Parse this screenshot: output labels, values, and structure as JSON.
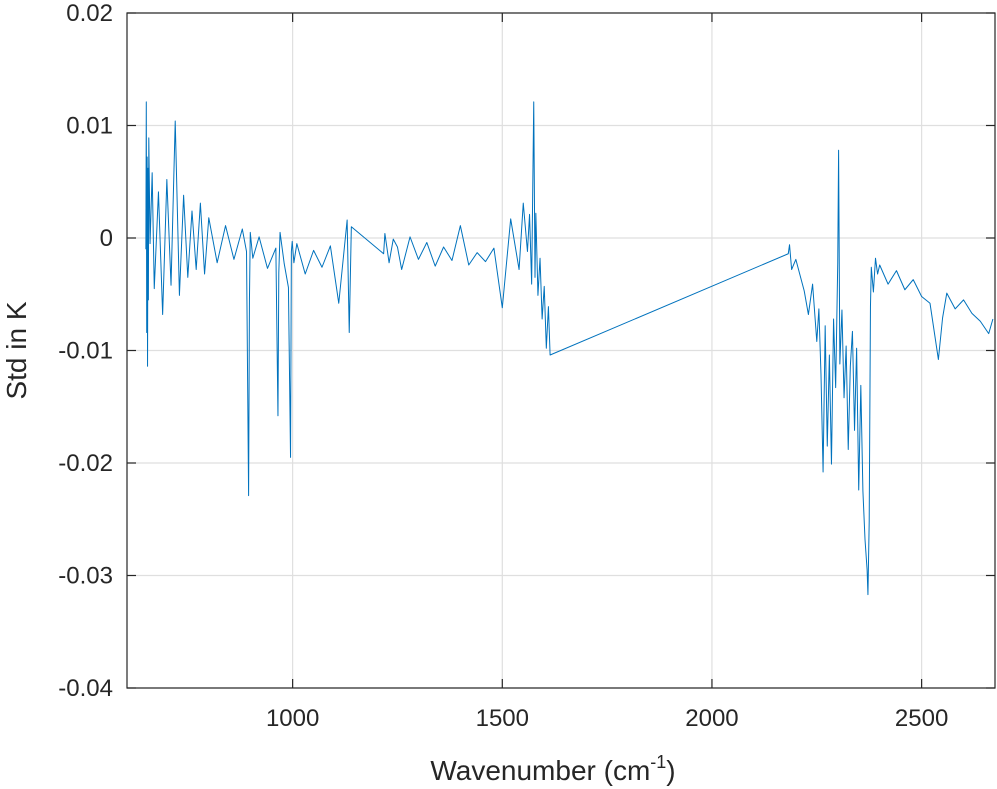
{
  "chart_data": {
    "type": "line",
    "xlabel_main": "Wavenumber (cm",
    "xlabel_sup": "-1",
    "xlabel_close": ")",
    "ylabel": "Std in K",
    "xlim": [
      605,
      2675
    ],
    "ylim": [
      -0.04,
      0.02
    ],
    "xticks": [
      1000,
      1500,
      2000,
      2500
    ],
    "xtick_labels": [
      "1000",
      "1500",
      "2000",
      "2500"
    ],
    "yticks": [
      0.02,
      0.01,
      0,
      -0.01,
      -0.02,
      -0.03,
      -0.04
    ],
    "ytick_labels": [
      "0.02",
      "0.01",
      "0",
      "-0.01",
      "-0.02",
      "-0.03",
      "-0.04"
    ],
    "grid": true,
    "box": true,
    "series_color": "#0072bd",
    "series": [
      {
        "x": [
          650,
          651,
          652,
          653,
          654,
          655,
          656,
          657,
          660,
          665,
          670,
          680,
          690,
          700,
          710,
          720,
          730,
          740,
          750,
          760,
          770,
          780,
          790,
          800,
          820,
          840,
          860,
          880,
          890,
          895,
          897,
          899,
          905,
          920,
          940,
          960,
          965,
          967,
          970,
          980,
          990,
          995,
          997,
          999,
          1003,
          1010,
          1030,
          1050,
          1070,
          1090,
          1110,
          1130,
          1135,
          1140,
          1217,
          1220,
          1230,
          1240,
          1250,
          1260,
          1280,
          1300,
          1320,
          1340,
          1360,
          1380,
          1400,
          1420,
          1440,
          1460,
          1480,
          1500,
          1520,
          1540,
          1550,
          1560,
          1565,
          1570,
          1575,
          1578,
          1580,
          1585,
          1590,
          1595,
          1600,
          1605,
          1610,
          1614,
          2182,
          2185,
          2190,
          2200,
          2210,
          2220,
          2230,
          2240,
          2250,
          2255,
          2260,
          2265,
          2270,
          2275,
          2280,
          2285,
          2290,
          2295,
          2300,
          2302,
          2305,
          2310,
          2315,
          2320,
          2325,
          2330,
          2335,
          2340,
          2345,
          2350,
          2355,
          2360,
          2365,
          2370,
          2372,
          2375,
          2378,
          2380,
          2385,
          2390,
          2395,
          2400,
          2420,
          2440,
          2460,
          2480,
          2500,
          2520,
          2540,
          2550,
          2560,
          2580,
          2600,
          2620,
          2640,
          2660,
          2670
        ],
        "y": [
          -0.001,
          0.0121,
          -0.0084,
          0.0072,
          -0.0114,
          0.0062,
          -0.0055,
          0.0089,
          -0.0005,
          0.0058,
          -0.0045,
          0.0041,
          -0.0068,
          0.0052,
          -0.0042,
          0.0104,
          -0.0051,
          0.0038,
          -0.0035,
          0.0024,
          -0.0028,
          0.0031,
          -0.0032,
          0.0018,
          -0.0022,
          0.0011,
          -0.0019,
          0.0008,
          -0.0012,
          -0.0229,
          -0.0055,
          0.0005,
          -0.0018,
          0.0001,
          -0.0027,
          -0.0009,
          -0.0158,
          -0.0031,
          0.0005,
          -0.0023,
          -0.0044,
          -0.0195,
          -0.0012,
          -0.0003,
          -0.0022,
          -0.0005,
          -0.0032,
          -0.0011,
          -0.0026,
          -0.0007,
          -0.0058,
          0.0016,
          -0.0084,
          0.001,
          -0.0014,
          0.0004,
          -0.0022,
          -0.0001,
          -0.0008,
          -0.0028,
          0.0001,
          -0.0019,
          -0.0004,
          -0.0025,
          -0.0008,
          -0.002,
          0.0011,
          -0.0024,
          -0.0013,
          -0.0021,
          -0.0009,
          -0.0062,
          0.0017,
          -0.0028,
          0.0031,
          -0.0012,
          0.0021,
          -0.0041,
          0.0121,
          -0.0035,
          0.0022,
          -0.0051,
          -0.0018,
          -0.0072,
          -0.0043,
          -0.0098,
          -0.0061,
          -0.0104,
          -0.0014,
          -0.0006,
          -0.0028,
          -0.0019,
          -0.0033,
          -0.0047,
          -0.0068,
          -0.0041,
          -0.0092,
          -0.0063,
          -0.0121,
          -0.0208,
          -0.0078,
          -0.0185,
          -0.0104,
          -0.0201,
          -0.0072,
          -0.0133,
          -0.0022,
          0.0078,
          -0.0112,
          -0.0064,
          -0.0142,
          -0.0096,
          -0.0188,
          -0.0114,
          -0.0083,
          -0.0171,
          -0.0098,
          -0.0224,
          -0.0131,
          -0.0225,
          -0.0268,
          -0.0295,
          -0.0317,
          -0.0252,
          -0.0061,
          -0.0026,
          -0.0048,
          -0.0018,
          -0.0032,
          -0.0024,
          -0.0041,
          -0.0029,
          -0.0046,
          -0.0037,
          -0.0052,
          -0.0058,
          -0.0108,
          -0.0071,
          -0.0049,
          -0.0063,
          -0.0055,
          -0.0067,
          -0.0074,
          -0.0085,
          -0.0072
        ]
      }
    ]
  }
}
